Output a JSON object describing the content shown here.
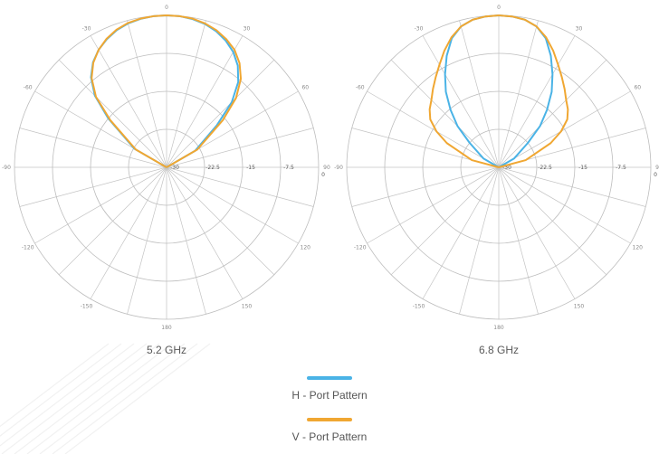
{
  "legend": [
    {
      "label": "H - Port Pattern",
      "color": "#4ab3e6"
    },
    {
      "label": "V - Port Pattern",
      "color": "#f0a732"
    }
  ],
  "chart_data": [
    {
      "type": "polar",
      "title": "5.2 GHz",
      "angle_ticks": [
        0,
        30,
        60,
        90,
        120,
        150,
        180,
        -150,
        -120,
        -90,
        -60,
        -30
      ],
      "angle_tick_labels": [
        "0",
        "30",
        "60",
        "90",
        "120",
        "150",
        "180",
        "-150",
        "-120",
        "-90",
        "-60",
        "-30"
      ],
      "radial_ticks": [
        -30,
        -22.5,
        -15,
        -7.5,
        0
      ],
      "radial_tick_labels": [
        "-30",
        "-22.5",
        "-15",
        "-7.5",
        "0"
      ],
      "rlim": [
        -30,
        0
      ],
      "outer_ring_label": "0",
      "grid": true,
      "series": [
        {
          "name": "H - Port Pattern",
          "color": "#4ab3e6",
          "theta": [
            -90,
            -60,
            -50,
            -45,
            -40,
            -35,
            -30,
            -25,
            -20,
            -15,
            -10,
            -5,
            0,
            5,
            10,
            15,
            20,
            25,
            30,
            35,
            40,
            45,
            50,
            60,
            90
          ],
          "r": [
            -30,
            -22.7,
            -15,
            -10,
            -6.8,
            -4.7,
            -3.2,
            -2.1,
            -1.2,
            -0.6,
            -0.25,
            -0.05,
            0,
            -0.05,
            -0.3,
            -0.7,
            -1.4,
            -2.4,
            -3.7,
            -5.5,
            -8,
            -11.8,
            -17,
            -23.5,
            -30
          ]
        },
        {
          "name": "V - Port Pattern",
          "color": "#f0a732",
          "theta": [
            -90,
            -60,
            -50,
            -45,
            -40,
            -35,
            -30,
            -25,
            -20,
            -15,
            -10,
            -5,
            0,
            5,
            10,
            15,
            20,
            25,
            30,
            35,
            40,
            45,
            50,
            60,
            90
          ],
          "r": [
            -30,
            -23,
            -15.5,
            -10.3,
            -7,
            -4.8,
            -3.2,
            -2,
            -1.1,
            -0.5,
            -0.2,
            -0.05,
            0,
            -0.05,
            -0.2,
            -0.6,
            -1.2,
            -2.1,
            -3.2,
            -4.9,
            -7.2,
            -10.6,
            -15.5,
            -23,
            -30
          ]
        }
      ]
    },
    {
      "type": "polar",
      "title": "6.8 GHz",
      "angle_ticks": [
        0,
        30,
        60,
        90,
        120,
        150,
        180,
        -150,
        -120,
        -90,
        -60,
        -30
      ],
      "angle_tick_labels": [
        "0",
        "30",
        "60",
        "90",
        "120",
        "150",
        "180",
        "-150",
        "-120",
        "-90",
        "-60",
        "-30"
      ],
      "radial_ticks": [
        -30,
        -22.5,
        -15,
        -7.5,
        0
      ],
      "radial_tick_labels": [
        "-30",
        "-22.5",
        "-15",
        "-7.5",
        "0"
      ],
      "rlim": [
        -30,
        0
      ],
      "outer_ring_label": "0",
      "grid": true,
      "series": [
        {
          "name": "H - Port Pattern",
          "color": "#4ab3e6",
          "theta": [
            -90,
            -60,
            -50,
            -45,
            -40,
            -35,
            -30,
            -25,
            -20,
            -15,
            -10,
            -5,
            0,
            5,
            10,
            15,
            20,
            25,
            30,
            35,
            40,
            45,
            50,
            60,
            90
          ],
          "r": [
            -30,
            -26.5,
            -22.5,
            -18.5,
            -15.2,
            -11.8,
            -8.8,
            -5.7,
            -2.9,
            -1.2,
            -0.4,
            -0.1,
            0,
            -0.1,
            -0.4,
            -1.2,
            -2.9,
            -5.7,
            -8.8,
            -11.8,
            -15.2,
            -18.5,
            -22.5,
            -26.5,
            -30
          ]
        },
        {
          "name": "V - Port Pattern",
          "color": "#f0a732",
          "theta": [
            -90,
            -75,
            -65,
            -60,
            -55,
            -50,
            -45,
            -40,
            -35,
            -30,
            -25,
            -20,
            -15,
            -10,
            -5,
            0,
            5,
            10,
            15,
            20,
            25,
            30,
            35,
            40,
            45,
            50,
            55,
            60,
            65,
            75,
            90
          ],
          "r": [
            -30,
            -24.5,
            -18.7,
            -15.8,
            -13.5,
            -12.2,
            -11.2,
            -9.8,
            -8.3,
            -6.6,
            -4.6,
            -2.7,
            -1.2,
            -0.4,
            -0.1,
            0,
            -0.1,
            -0.4,
            -1.2,
            -2.7,
            -4.6,
            -6.6,
            -8.3,
            -9.8,
            -11.2,
            -12.2,
            -13.5,
            -15.8,
            -18.7,
            -24.5,
            -30
          ]
        }
      ]
    }
  ]
}
